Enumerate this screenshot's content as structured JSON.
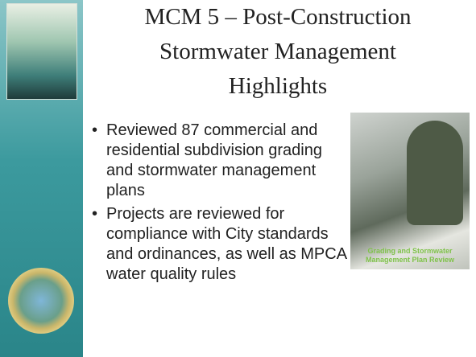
{
  "title": "MCM 5 – Post-Construction Stormwater Management Highlights",
  "bullets": [
    "Reviewed 87 commercial and residential subdivision grading and stormwater management plans",
    "Projects are reviewed for compliance with City standards and ordinances, as well as MPCA water quality rules"
  ],
  "photo_caption": "Grading and Stormwater Management Plan Review"
}
